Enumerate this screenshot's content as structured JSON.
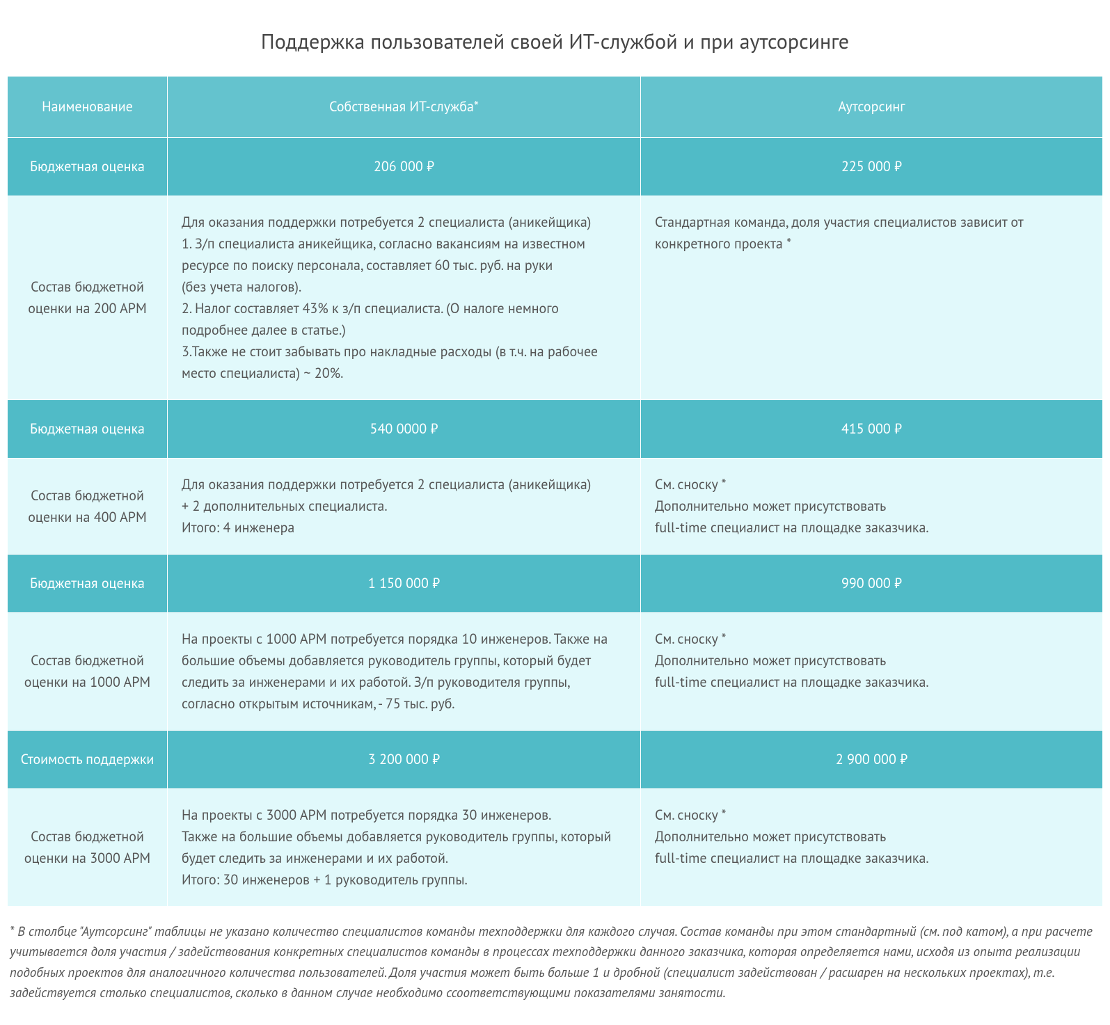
{
  "title": "Поддержка пользователей своей ИТ-службой и при аутсорсинге",
  "colors": {
    "header_bg": "#64c3ce",
    "row_bg": "#50bbc7",
    "pale_bg": "#e1f9fb",
    "border": "#ffffff",
    "text_light": "#ffffff",
    "text_body": "#555555"
  },
  "columns": {
    "name": "Наименование",
    "own": "Собственная ИТ-служба*",
    "outsource": "Аутсорсинг"
  },
  "rows": [
    {
      "type": "price",
      "label": "Бюджетная оценка",
      "own": "206 000 ₽",
      "out": "225 000 ₽"
    },
    {
      "type": "detail",
      "label": "Состав бюджетной оценки на 200 АРМ",
      "own": "Для оказания поддержки потребуется 2 специалиста (аникейщика)\n1. З/п специалиста аникейщика, согласно вакансиям на известном ресурсе по поиску персонала, составляет 60 тыс. руб. на руки\n(без учета налогов).\n2. Налог составляет 43% к з/п специалиста. (О налоге немного подробнее далее в статье.)\n3.Также не стоит забывать про накладные расходы (в т.ч. на рабочее место специалиста) ~ 20%.",
      "out": "Стандартная команда, доля участия специалистов зависит от конкретного проекта *"
    },
    {
      "type": "price",
      "label": "Бюджетная оценка",
      "own": "540 0000 ₽",
      "out": "415 000 ₽"
    },
    {
      "type": "detail",
      "label": "Состав бюджетной оценки  на 400 АРМ",
      "own": "Для оказания поддержки потребуется 2 специалиста (аникейщика)\n+ 2 дополнительных специалиста.\nИтого: 4 инженера",
      "out": "См. сноску *\nДополнительно может присутствовать\nfull-time специалист на площадке заказчика."
    },
    {
      "type": "price",
      "label": "Бюджетная оценка",
      "own": "1 150 000 ₽",
      "out": "990 000 ₽"
    },
    {
      "type": "detail",
      "label": "Состав бюджетной оценки  на 1000 АРМ",
      "own": "На проекты с 1000 АРМ потребуется порядка 10 инженеров. Также на большие объемы добавляется руководитель группы, который будет следить за инженерами и их работой. З/п руководителя группы, согласно открытым источникам, - 75 тыс. руб.",
      "out": "См. сноску *\nДополнительно может присутствовать\nfull-time специалист на площадке заказчика."
    },
    {
      "type": "price",
      "label": "Стоимость поддержки",
      "own": "3 200 000 ₽",
      "out": "2 900 000 ₽"
    },
    {
      "type": "detail",
      "label": "Состав бюджетной оценки  на 3000 АРМ",
      "own": "На проекты с 3000 АРМ потребуется порядка 30 инженеров.\nТакже на большие объемы добавляется руководитель группы, который будет следить за инженерами и их работой.\nИтого: 30 инженеров + 1 руководитель группы.",
      "out": "См. сноску *\nДополнительно может присутствовать\nfull-time специалист на площадке заказчика."
    }
  ],
  "footnote": "* В столбце \"Аутсорсинг\" таблицы не указано количество специалистов команды техподдержки для каждого случая. Состав команды при этом стандартный (см. под катом), а при расчете учитывается доля участия / задействования конкретных специалистов команды в процессах техподдержки данного заказчика, которая определяется нами, исходя из опыта реализации подобных проектов для аналогичного количества пользователей. Доля участия может быть больше 1 и дробной (специалист задействован / расшарен на нескольких проектах), т.е. задействуется столько специалистов, сколько в данном случае необходимо ссоответствующими показателями занятости."
}
